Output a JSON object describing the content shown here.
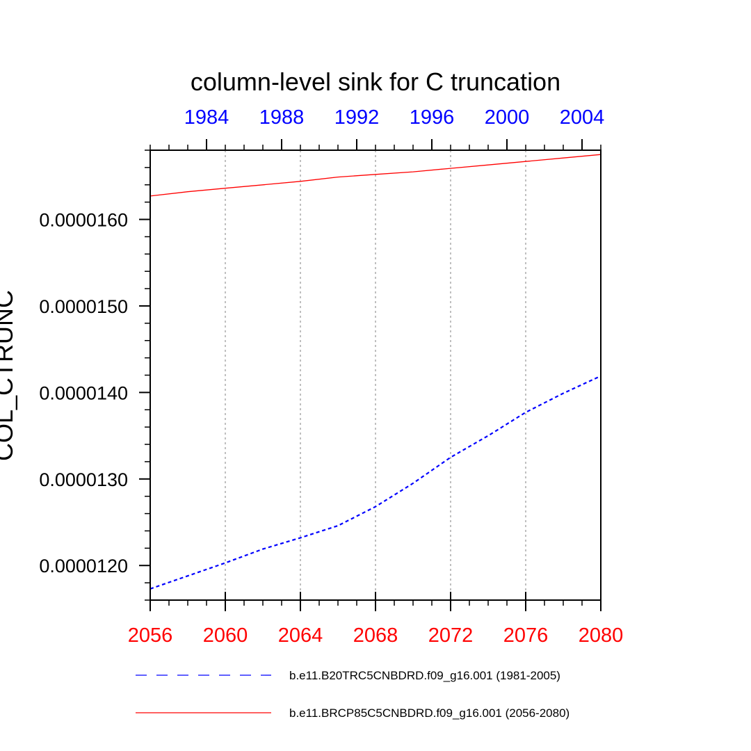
{
  "chart_data": {
    "type": "line",
    "title": "column-level sink for C truncation",
    "ylabel": "COL_CTRUNC",
    "bottom_axis": {
      "range": [
        2056,
        2080
      ],
      "ticks": [
        2056,
        2060,
        2064,
        2068,
        2072,
        2076,
        2080
      ],
      "tick_labels": [
        "2056",
        "2060",
        "2064",
        "2068",
        "2072",
        "2076",
        "2080"
      ],
      "color": "#ff0000"
    },
    "top_axis": {
      "range": [
        1981,
        2005
      ],
      "ticks": [
        1984,
        1988,
        1992,
        1996,
        2000,
        2004
      ],
      "tick_labels": [
        "1984",
        "1988",
        "1992",
        "1996",
        "2000",
        "2004"
      ],
      "color": "#0000ff"
    },
    "y_axis": {
      "range": [
        1.16e-05,
        1.68e-05
      ],
      "ticks": [
        1.2e-05,
        1.3e-05,
        1.4e-05,
        1.5e-05,
        1.6e-05
      ],
      "tick_labels": [
        "0.0000120",
        "0.0000130",
        "0.0000140",
        "0.0000150",
        "0.0000160"
      ]
    },
    "grid": "vertical dotted lines at labeled ticks",
    "legend_position": "bottom",
    "series": [
      {
        "name": "b.e11.B20TRC5CNBDRD.f09_g16.001 (1981-2005)",
        "color": "#0000ff",
        "style": "dashed",
        "x": [
          2056,
          2058,
          2060,
          2062,
          2064,
          2066,
          2068,
          2070,
          2072,
          2074,
          2076,
          2078,
          2080
        ],
        "y": [
          1.173e-05,
          1.188e-05,
          1.203e-05,
          1.219e-05,
          1.232e-05,
          1.246e-05,
          1.268e-05,
          1.295e-05,
          1.325e-05,
          1.35e-05,
          1.377e-05,
          1.399e-05,
          1.419e-05
        ]
      },
      {
        "name": "b.e11.BRCP85C5CNBDRD.f09_g16.001 (2056-2080)",
        "color": "#ff0000",
        "style": "solid",
        "x": [
          2056,
          2058,
          2060,
          2062,
          2064,
          2066,
          2068,
          2070,
          2072,
          2074,
          2076,
          2078,
          2080
        ],
        "y": [
          1.627e-05,
          1.632e-05,
          1.636e-05,
          1.64e-05,
          1.644e-05,
          1.649e-05,
          1.652e-05,
          1.655e-05,
          1.659e-05,
          1.663e-05,
          1.667e-05,
          1.671e-05,
          1.675e-05
        ]
      }
    ]
  }
}
